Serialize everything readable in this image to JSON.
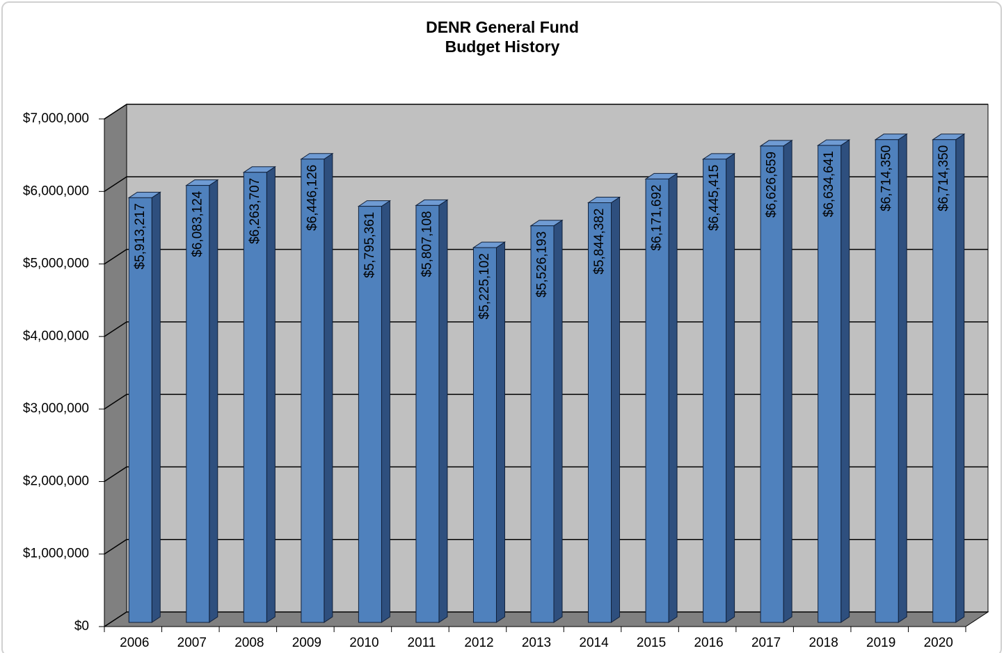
{
  "chart_data": {
    "type": "bar3d",
    "title": [
      "DENR General Fund",
      "Budget History"
    ],
    "categories": [
      "2006",
      "2007",
      "2008",
      "2009",
      "2010",
      "2011",
      "2012",
      "2013",
      "2014",
      "2015",
      "2016",
      "2017",
      "2018",
      "2019",
      "2020"
    ],
    "values": [
      5913217,
      6083124,
      6263707,
      6446126,
      5795361,
      5807108,
      5225102,
      5526193,
      5844382,
      6171692,
      6445415,
      6626659,
      6634641,
      6714350,
      6714350
    ],
    "value_labels": [
      "$5,913,217",
      "$6,083,124",
      "$6,263,707",
      "$6,446,126",
      "$5,795,361",
      "$5,807,108",
      "$5,225,102",
      "$5,526,193",
      "$5,844,382",
      "$6,171,692",
      "$6,445,415",
      "$6,626,659",
      "$6,634,641",
      "$6,714,350",
      "$6,714,350"
    ],
    "color": "#4f81bd",
    "ylim": [
      0,
      7000000
    ],
    "yticks": [
      {
        "value": 0,
        "label": "$0"
      },
      {
        "value": 1000000,
        "label": "$1,000,000"
      },
      {
        "value": 2000000,
        "label": "$2,000,000"
      },
      {
        "value": 3000000,
        "label": "$3,000,000"
      },
      {
        "value": 4000000,
        "label": "$4,000,000"
      },
      {
        "value": 5000000,
        "label": "$5,000,000"
      },
      {
        "value": 6000000,
        "label": "$6,000,000"
      },
      {
        "value": 7000000,
        "label": "$7,000,000"
      }
    ],
    "grid": true
  }
}
